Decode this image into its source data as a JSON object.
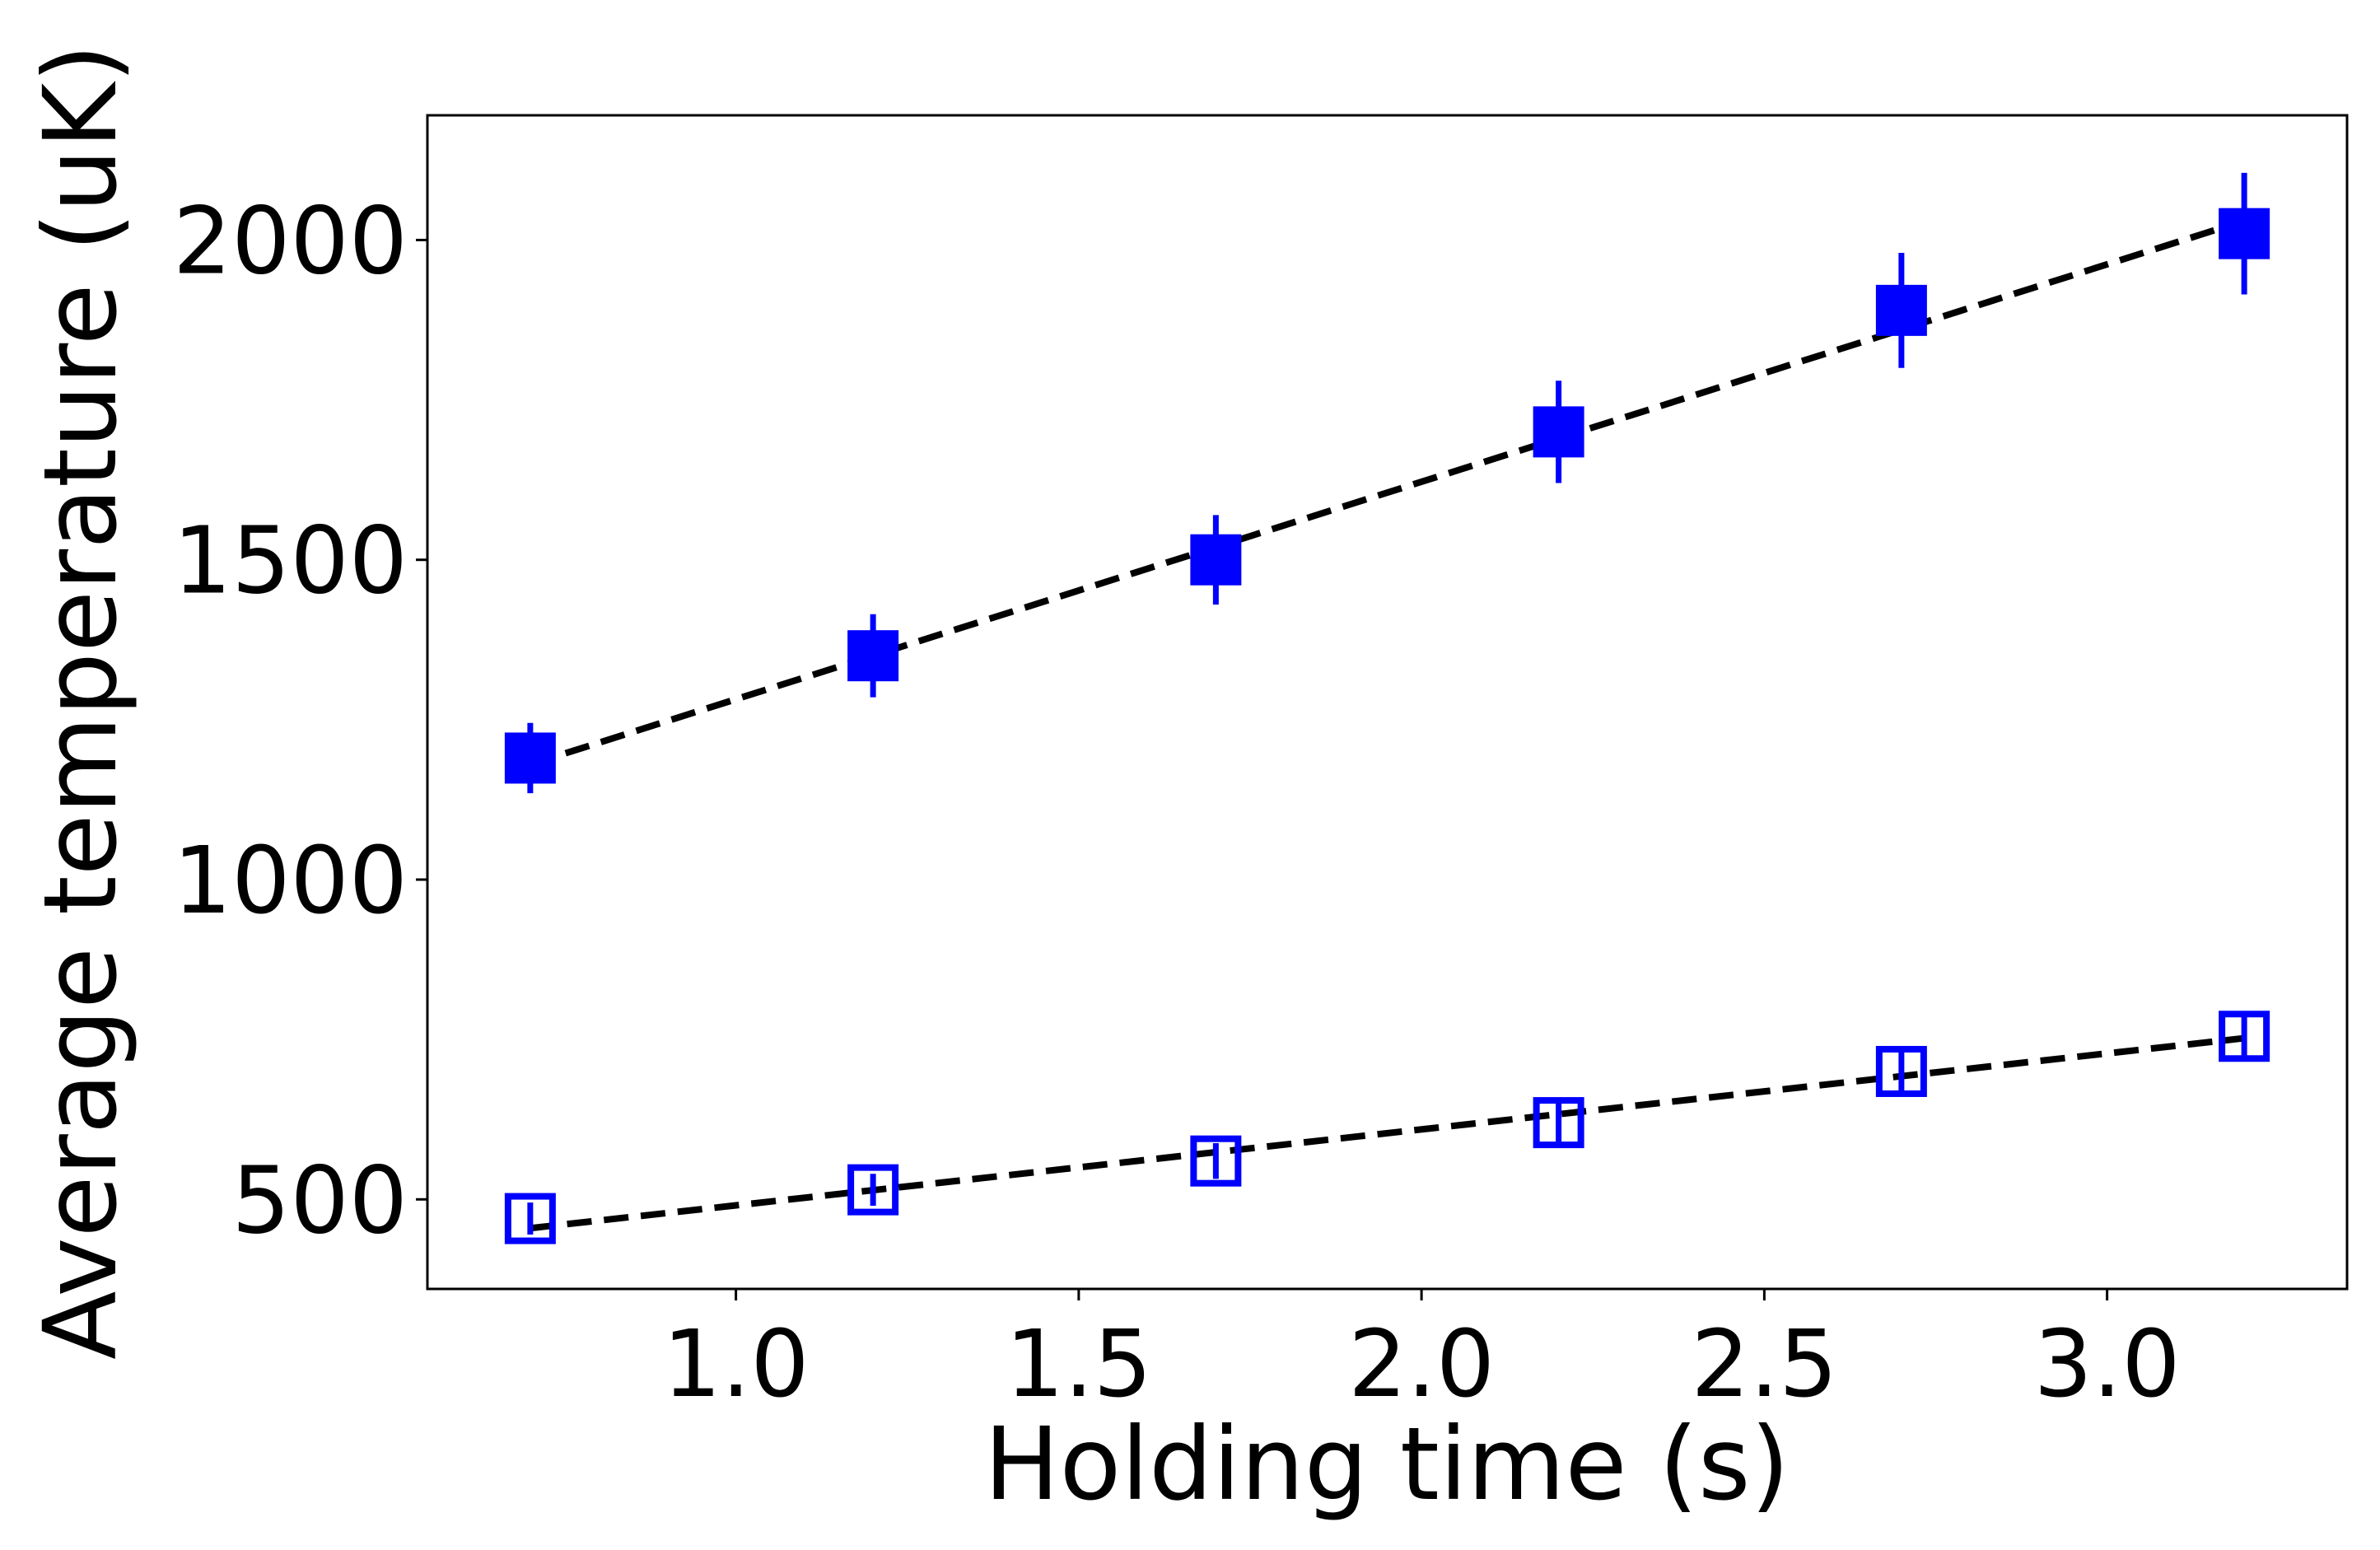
{
  "chart_data": {
    "type": "scatter",
    "xlabel": "Holding time (s)",
    "ylabel": "Average temperature (uK)",
    "xlim": [
      0.55,
      3.35
    ],
    "ylim": [
      360,
      2195
    ],
    "xticks": [
      1.0,
      1.5,
      2.0,
      2.5,
      3.0
    ],
    "xtick_labels": [
      "1.0",
      "1.5",
      "2.0",
      "2.5",
      "3.0"
    ],
    "yticks": [
      500,
      1000,
      1500,
      2000
    ],
    "ytick_labels": [
      "500",
      "1000",
      "1500",
      "2000"
    ],
    "grid": false,
    "legend": "none",
    "series": [
      {
        "marker": "filled-square",
        "color": "#0000ff",
        "x": [
          0.7,
          1.2,
          1.7,
          2.2,
          2.7,
          3.2
        ],
        "y": [
          1190,
          1350,
          1500,
          1700,
          1890,
          2010
        ],
        "yerr": [
          55,
          65,
          70,
          80,
          90,
          95
        ]
      },
      {
        "marker": "open-square",
        "color": "#0000ff",
        "x": [
          0.7,
          1.2,
          1.7,
          2.2,
          2.7,
          3.2
        ],
        "y": [
          470,
          515,
          560,
          620,
          700,
          755
        ],
        "yerr": [
          25,
          25,
          28,
          30,
          32,
          35
        ]
      }
    ],
    "fits": [
      {
        "style": "dashed",
        "color": "#000000",
        "x": [
          0.7,
          3.2
        ],
        "y": [
          1180,
          2030
        ]
      },
      {
        "style": "dashed",
        "color": "#000000",
        "x": [
          0.7,
          3.2
        ],
        "y": [
          455,
          752
        ]
      }
    ]
  }
}
